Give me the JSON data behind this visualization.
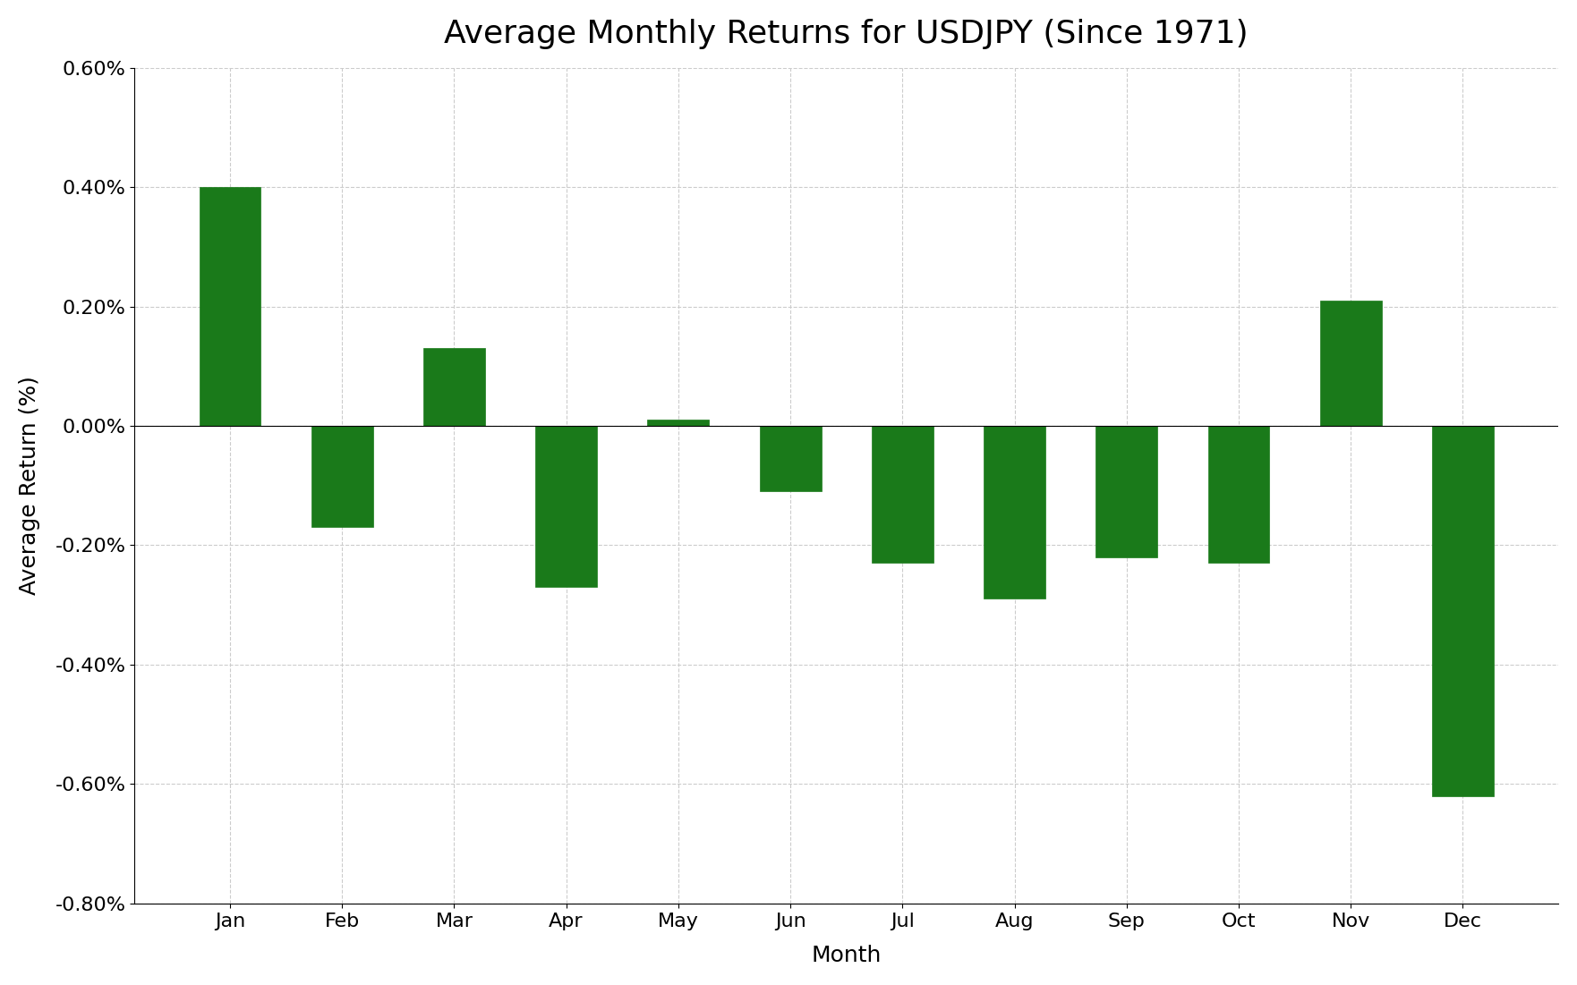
{
  "title": "Average Monthly Returns for USDJPY (Since 1971)",
  "xlabel": "Month",
  "ylabel": "Average Return (%)",
  "months": [
    "Jan",
    "Feb",
    "Mar",
    "Apr",
    "May",
    "Jun",
    "Jul",
    "Aug",
    "Sep",
    "Oct",
    "Nov",
    "Dec"
  ],
  "values": [
    0.004,
    -0.0017,
    0.0013,
    -0.0027,
    0.0001,
    -0.0011,
    -0.0023,
    -0.0029,
    -0.0022,
    -0.0023,
    0.0021,
    -0.0062
  ],
  "bar_color": "#1a7a1a",
  "ylim_low": -0.008,
  "ylim_high": 0.006,
  "ytick_values": [
    -0.008,
    -0.006,
    -0.004,
    -0.002,
    0.0,
    0.002,
    0.004,
    0.006
  ],
  "background_color": "#ffffff",
  "grid_color": "#cccccc",
  "title_fontsize": 26,
  "label_fontsize": 18,
  "tick_fontsize": 16,
  "bar_width": 0.55
}
